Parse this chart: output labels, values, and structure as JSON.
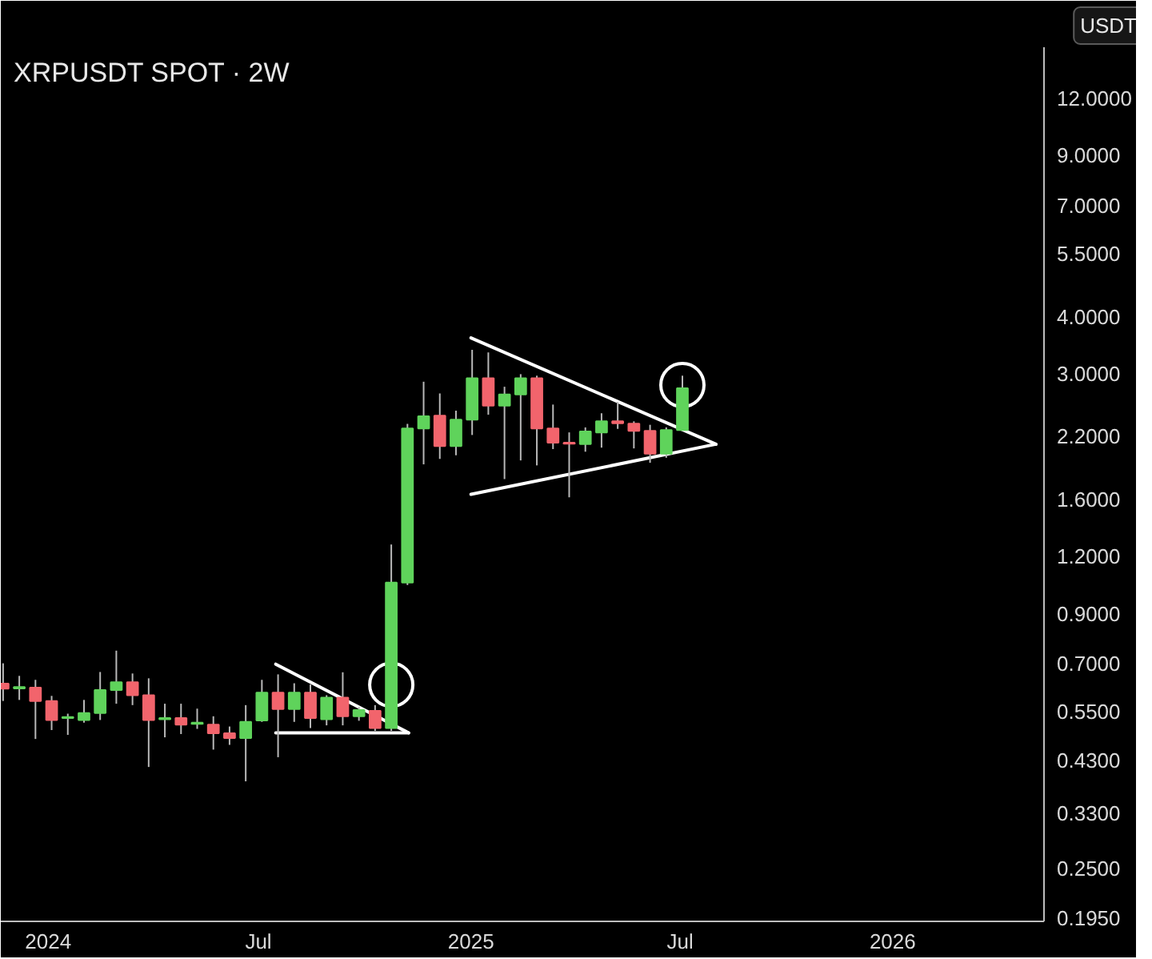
{
  "chart_data": {
    "type": "candlestick",
    "title": "XRPUSDT SPOT · 2W",
    "ylabel": "USDT",
    "x": [
      "2023-11-23",
      "2023-12-07",
      "2023-12-21",
      "2024-01-04",
      "2024-01-18",
      "2024-02-01",
      "2024-02-15",
      "2024-02-29",
      "2024-03-14",
      "2024-03-28",
      "2024-04-11",
      "2024-04-25",
      "2024-05-09",
      "2024-05-23",
      "2024-06-06",
      "2024-06-20",
      "2024-07-04",
      "2024-07-18",
      "2024-08-01",
      "2024-08-15",
      "2024-08-29",
      "2024-09-12",
      "2024-09-26",
      "2024-10-10",
      "2024-10-24",
      "2024-11-07",
      "2024-11-21",
      "2024-12-05",
      "2024-12-19",
      "2025-01-02",
      "2025-01-16",
      "2025-01-30",
      "2025-02-13",
      "2025-02-27",
      "2025-03-13",
      "2025-03-27",
      "2025-04-10",
      "2025-04-24",
      "2025-05-08",
      "2025-05-22",
      "2025-06-05",
      "2025-06-19",
      "2025-07-03"
    ],
    "ohlc": [
      [
        0.634,
        0.702,
        0.581,
        0.618
      ],
      [
        0.619,
        0.659,
        0.584,
        0.623
      ],
      [
        0.621,
        0.646,
        0.48,
        0.581
      ],
      [
        0.581,
        0.596,
        0.502,
        0.528
      ],
      [
        0.533,
        0.545,
        0.49,
        0.536
      ],
      [
        0.528,
        0.584,
        0.521,
        0.547
      ],
      [
        0.547,
        0.672,
        0.528,
        0.614
      ],
      [
        0.614,
        0.748,
        0.573,
        0.638
      ],
      [
        0.638,
        0.667,
        0.569,
        0.598
      ],
      [
        0.598,
        0.651,
        0.417,
        0.528
      ],
      [
        0.53,
        0.573,
        0.484,
        0.533
      ],
      [
        0.533,
        0.573,
        0.492,
        0.516
      ],
      [
        0.518,
        0.559,
        0.505,
        0.521
      ],
      [
        0.516,
        0.538,
        0.455,
        0.494
      ],
      [
        0.494,
        0.511,
        0.466,
        0.482
      ],
      [
        0.482,
        0.569,
        0.388,
        0.523
      ],
      [
        0.527,
        0.646,
        0.523,
        0.606
      ],
      [
        0.606,
        0.664,
        0.438,
        0.558
      ],
      [
        0.558,
        0.635,
        0.523,
        0.606
      ],
      [
        0.606,
        0.631,
        0.507,
        0.533
      ],
      [
        0.53,
        0.598,
        0.514,
        0.591
      ],
      [
        0.591,
        0.671,
        0.514,
        0.538
      ],
      [
        0.538,
        0.564,
        0.526,
        0.555
      ],
      [
        0.553,
        0.569,
        0.5,
        0.507
      ],
      [
        0.507,
        1.275,
        0.5,
        1.053
      ],
      [
        1.053,
        2.337,
        1.04,
        2.284
      ],
      [
        2.284,
        2.888,
        1.907,
        2.428
      ],
      [
        2.436,
        2.723,
        1.96,
        2.09
      ],
      [
        2.09,
        2.497,
        1.996,
        2.386
      ],
      [
        2.386,
        3.39,
        2.21,
        2.939
      ],
      [
        2.939,
        3.346,
        2.447,
        2.561
      ],
      [
        2.561,
        2.816,
        1.771,
        2.71
      ],
      [
        2.71,
        3.0,
        1.945,
        2.939
      ],
      [
        2.939,
        2.977,
        1.897,
        2.284
      ],
      [
        2.284,
        2.575,
        2.059,
        2.127
      ],
      [
        2.127,
        2.239,
        1.616,
        2.115
      ],
      [
        2.111,
        2.296,
        2.032,
        2.249
      ],
      [
        2.239,
        2.465,
        2.074,
        2.367
      ],
      [
        2.367,
        2.609,
        2.279,
        2.345
      ],
      [
        2.34,
        2.367,
        2.066,
        2.256
      ],
      [
        2.256,
        2.326,
        1.922,
        2.012
      ],
      [
        2.012,
        2.296,
        1.971,
        2.266
      ],
      [
        2.266,
        2.977,
        2.266,
        2.794
      ]
    ],
    "colors": [
      "#f2646c",
      "#5fd35b",
      "#f2646c",
      "#f2646c",
      "#5fd35b",
      "#5fd35b",
      "#5fd35b",
      "#5fd35b",
      "#f2646c",
      "#f2646c",
      "#5fd35b",
      "#f2646c",
      "#5fd35b",
      "#f2646c",
      "#f2646c",
      "#5fd35b",
      "#5fd35b",
      "#f2646c",
      "#5fd35b",
      "#f2646c",
      "#5fd35b",
      "#f2646c",
      "#5fd35b",
      "#f2646c",
      "#5fd35b",
      "#5fd35b",
      "#5fd35b",
      "#f2646c",
      "#5fd35b",
      "#5fd35b",
      "#f2646c",
      "#5fd35b",
      "#5fd35b",
      "#f2646c",
      "#f2646c",
      "#f2646c",
      "#5fd35b",
      "#5fd35b",
      "#f2646c",
      "#f2646c",
      "#f2646c",
      "#5fd35b",
      "#5fd35b"
    ],
    "series": [
      {
        "type": "line",
        "color": "#ffffff",
        "x": [
          "2024-07-16",
          "2024-11-08"
        ],
        "values": [
          0.699,
          0.495
        ]
      },
      {
        "type": "line",
        "color": "#ffffff",
        "x": [
          "2024-07-16",
          "2024-11-08"
        ],
        "values": [
          0.495,
          0.495
        ]
      },
      {
        "type": "line",
        "color": "#ffffff",
        "x": [
          "2025-01-01",
          "2025-08-01"
        ],
        "values": [
          3.6,
          2.11
        ]
      },
      {
        "type": "line",
        "color": "#ffffff",
        "x": [
          "2025-01-01",
          "2025-08-01"
        ],
        "values": [
          1.64,
          2.11
        ]
      },
      {
        "type": "scatter",
        "color": "#ffffff",
        "marker": "circle",
        "x": [
          "2024-10-24",
          "2025-07-03"
        ],
        "values": [
          0.63,
          2.84
        ]
      }
    ],
    "log": "y",
    "xlim": [
      "2023-11-21",
      "2026-05-12"
    ],
    "ylim": [
      0.192,
      15.5
    ],
    "xticks": [
      {
        "value": "2024-01-01",
        "label": "2024"
      },
      {
        "value": "2024-07-01",
        "label": "Jul"
      },
      {
        "value": "2025-01-01",
        "label": "2025"
      },
      {
        "value": "2025-07-01",
        "label": "Jul"
      },
      {
        "value": "2026-01-01",
        "label": "2026"
      }
    ],
    "yticks": [
      {
        "value": 0.195,
        "label": "0.1950"
      },
      {
        "value": 0.25,
        "label": "0.2500"
      },
      {
        "value": 0.33,
        "label": "0.3300"
      },
      {
        "value": 0.43,
        "label": "0.4300"
      },
      {
        "value": 0.55,
        "label": "0.5500"
      },
      {
        "value": 0.7,
        "label": "0.7000"
      },
      {
        "value": 0.9,
        "label": "0.9000"
      },
      {
        "value": 1.2,
        "label": "1.2000"
      },
      {
        "value": 1.6,
        "label": "1.6000"
      },
      {
        "value": 2.2,
        "label": "2.2000"
      },
      {
        "value": 3,
        "label": "3.0000"
      },
      {
        "value": 4,
        "label": "4.0000"
      },
      {
        "value": 5.5,
        "label": "5.5000"
      },
      {
        "value": 7,
        "label": "7.0000"
      },
      {
        "value": 9,
        "label": "9.0000"
      },
      {
        "value": 12,
        "label": "12.0000"
      }
    ]
  }
}
